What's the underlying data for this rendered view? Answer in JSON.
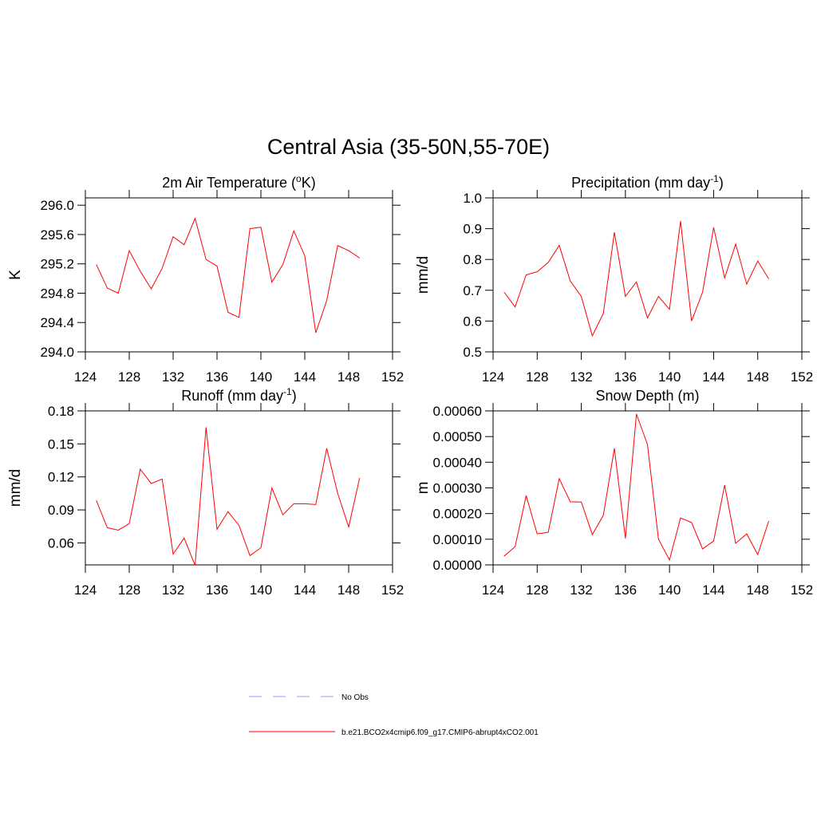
{
  "title": "Central Asia (35-50N,55-70E)",
  "legend": [
    {
      "name": "No Obs",
      "color": "#9999ff",
      "dash": true
    },
    {
      "name": "b.e21.BCO2x4cmip6.f09_g17.CMIP6-abrupt4xCO2.001",
      "color": "#ff0000",
      "dash": false
    }
  ],
  "chart_data": [
    {
      "type": "line",
      "title": [
        {
          "text": "2m Air Temperature ("
        },
        {
          "text": "o",
          "sup": true
        },
        {
          "text": "K)"
        }
      ],
      "y_label": "K",
      "x": [
        125,
        126,
        127,
        128,
        129,
        130,
        131,
        132,
        133,
        134,
        135,
        136,
        137,
        138,
        139,
        140,
        141,
        142,
        143,
        144,
        145,
        146,
        147,
        148,
        149
      ],
      "values": [
        295.19,
        294.87,
        294.8,
        295.38,
        295.1,
        294.86,
        295.14,
        295.57,
        295.46,
        295.82,
        295.26,
        295.17,
        294.54,
        294.47,
        295.68,
        295.7,
        294.95,
        295.19,
        295.65,
        295.31,
        294.26,
        294.7,
        295.45,
        295.38,
        295.28
      ],
      "color": "#ff0000",
      "xlim": [
        124,
        152
      ],
      "xticks": [
        124,
        128,
        132,
        136,
        140,
        144,
        148,
        152
      ],
      "ylim": [
        294.0,
        296.1
      ],
      "yticks": [
        {
          "value": 294,
          "label": "294.0"
        },
        {
          "value": 294.4,
          "label": "294.4"
        },
        {
          "value": 294.8,
          "label": "294.8"
        },
        {
          "value": 295.2,
          "label": "295.2"
        },
        {
          "value": 295.6,
          "label": "295.6"
        },
        {
          "value": 296,
          "label": "296.0"
        }
      ]
    },
    {
      "type": "line",
      "title": [
        {
          "text": "Precipitation (mm day"
        },
        {
          "text": "-1",
          "sup": true
        },
        {
          "text": ")"
        }
      ],
      "y_label": "mm/d",
      "x": [
        125,
        126,
        127,
        128,
        129,
        130,
        131,
        132,
        133,
        134,
        135,
        136,
        137,
        138,
        139,
        140,
        141,
        142,
        143,
        144,
        145,
        146,
        147,
        148,
        149
      ],
      "values": [
        0.694,
        0.646,
        0.75,
        0.76,
        0.79,
        0.846,
        0.73,
        0.68,
        0.552,
        0.625,
        0.888,
        0.68,
        0.727,
        0.61,
        0.68,
        0.638,
        0.925,
        0.6,
        0.694,
        0.904,
        0.74,
        0.85,
        0.72,
        0.795,
        0.737
      ],
      "color": "#ff0000",
      "xlim": [
        124,
        152
      ],
      "xticks": [
        124,
        128,
        132,
        136,
        140,
        144,
        148,
        152
      ],
      "ylim": [
        0.5,
        1.0
      ],
      "yticks": [
        0.5,
        0.6,
        0.7,
        0.8,
        0.9,
        {
          "value": 1,
          "label": "1.0"
        }
      ]
    },
    {
      "type": "line",
      "title": [
        {
          "text": "Runoff (mm day"
        },
        {
          "text": "-1",
          "sup": true
        },
        {
          "text": ")"
        }
      ],
      "y_label": "mm/d",
      "x": [
        125,
        126,
        127,
        128,
        129,
        130,
        131,
        132,
        133,
        134,
        135,
        136,
        137,
        138,
        139,
        140,
        141,
        142,
        143,
        144,
        145,
        146,
        147,
        148,
        149
      ],
      "values": [
        0.0985,
        0.0738,
        0.0716,
        0.0775,
        0.127,
        0.114,
        0.118,
        0.0498,
        0.0644,
        0.0396,
        0.165,
        0.0724,
        0.0884,
        0.076,
        0.0484,
        0.0556,
        0.11,
        0.0855,
        0.0956,
        0.0956,
        0.0949,
        0.146,
        0.105,
        0.0745,
        0.119
      ],
      "color": "#ff0000",
      "xlim": [
        124,
        152
      ],
      "xticks": [
        124,
        128,
        132,
        136,
        140,
        144,
        148,
        152
      ],
      "ylim": [
        0.04,
        0.18
      ],
      "yticks": [
        0.06,
        0.09,
        0.12,
        0.15,
        0.18
      ]
    },
    {
      "type": "line",
      "title": [
        {
          "text": "Snow Depth (m)"
        }
      ],
      "y_label": "m",
      "x": [
        125,
        126,
        127,
        128,
        129,
        130,
        131,
        132,
        133,
        134,
        135,
        136,
        137,
        138,
        139,
        140,
        141,
        142,
        143,
        144,
        145,
        146,
        147,
        148,
        149
      ],
      "values": [
        3.4e-05,
        7.1e-05,
        0.00027,
        0.000121,
        0.000127,
        0.000336,
        0.000246,
        0.000245,
        0.000118,
        0.000193,
        0.000454,
        0.000103,
        0.000588,
        0.000469,
        0.0001,
        1.9e-05,
        0.000183,
        0.000165,
        6.2e-05,
        9.3e-05,
        0.000311,
        8.4e-05,
        0.000121,
        4e-05,
        0.000171
      ],
      "color": "#ff0000",
      "xlim": [
        124,
        152
      ],
      "xticks": [
        124,
        128,
        132,
        136,
        140,
        144,
        148,
        152
      ],
      "ylim": [
        0,
        0.0006
      ],
      "yticks": [
        {
          "value": 0,
          "label": "0.00000"
        },
        {
          "value": 0.0001,
          "label": "0.00010"
        },
        {
          "value": 0.0002,
          "label": "0.00020"
        },
        {
          "value": 0.0003,
          "label": "0.00030"
        },
        {
          "value": 0.0004,
          "label": "0.00040"
        },
        {
          "value": 0.0005,
          "label": "0.00050"
        },
        {
          "value": 0.0006,
          "label": "0.00060"
        }
      ]
    }
  ]
}
